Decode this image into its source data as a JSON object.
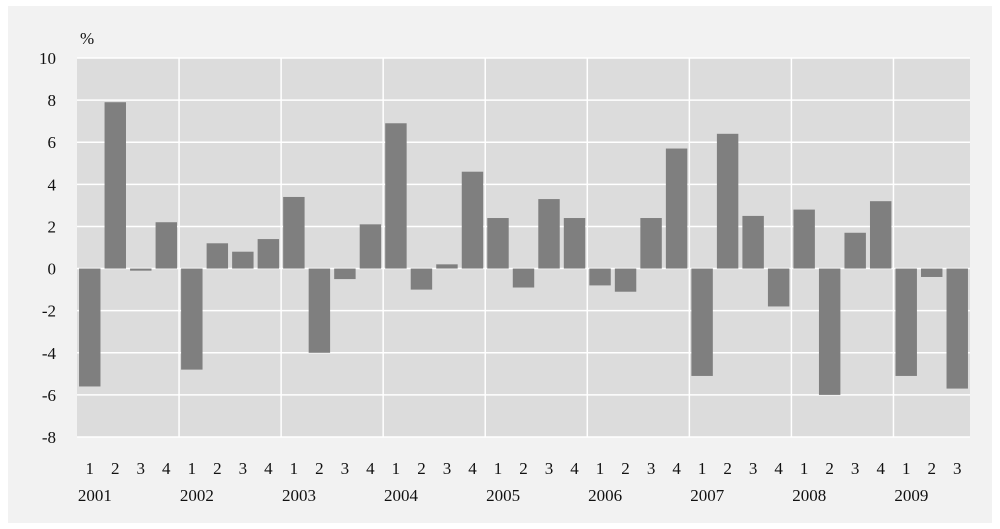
{
  "chart_data": {
    "type": "bar",
    "unit_label": "%",
    "ylim": [
      -8,
      10
    ],
    "yticks": [
      10,
      8,
      6,
      4,
      2,
      0,
      -2,
      -4,
      -6,
      -8
    ],
    "years": [
      "2001",
      "2002",
      "2003",
      "2004",
      "2005",
      "2006",
      "2007",
      "2008",
      "2009"
    ],
    "categories": [
      "1",
      "2",
      "3",
      "4",
      "1",
      "2",
      "3",
      "4",
      "1",
      "2",
      "3",
      "4",
      "1",
      "2",
      "3",
      "4",
      "1",
      "2",
      "3",
      "4",
      "1",
      "2",
      "3",
      "4",
      "1",
      "2",
      "3",
      "4",
      "1",
      "2",
      "3",
      "4",
      "1",
      "2",
      "3"
    ],
    "values": [
      -5.6,
      7.9,
      -0.1,
      2.2,
      -4.8,
      1.2,
      0.8,
      1.4,
      3.4,
      -4.0,
      -0.5,
      2.1,
      6.9,
      -1.0,
      0.2,
      4.6,
      2.4,
      -0.9,
      3.3,
      2.4,
      -0.8,
      -1.1,
      2.4,
      5.7,
      -5.1,
      6.4,
      2.5,
      -1.8,
      2.8,
      -6.0,
      1.7,
      3.2,
      -5.1,
      -0.4,
      -5.7
    ],
    "grid": true,
    "colors": {
      "bar": "#7f7f7f",
      "plot_bg": "#dcdcdc",
      "grid": "#ffffff",
      "page_bg": "#f2f2f2"
    }
  }
}
